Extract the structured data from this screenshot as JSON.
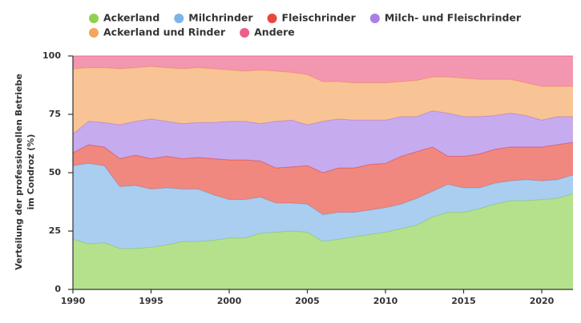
{
  "chart_data": {
    "type": "stacked_area",
    "y_label": [
      "Verteilung der professionellen Betriebe",
      "im Condroz (%)"
    ],
    "x": [
      1990,
      1991,
      1992,
      1993,
      1994,
      1995,
      1996,
      1997,
      1998,
      1999,
      2000,
      2001,
      2002,
      2003,
      2004,
      2005,
      2006,
      2007,
      2008,
      2009,
      2010,
      2011,
      2012,
      2013,
      2014,
      2015,
      2016,
      2017,
      2018,
      2019,
      2020,
      2021,
      2022
    ],
    "xlim": [
      1990,
      2022
    ],
    "xticks": [
      1990,
      1995,
      2000,
      2005,
      2010,
      2015,
      2020
    ],
    "ylim": [
      0,
      100
    ],
    "yticks": [
      0,
      25,
      50,
      75,
      100
    ],
    "grid": false,
    "series": [
      {
        "name": "Ackerland",
        "color": "#8fd14f",
        "values": [
          21.5,
          19.5,
          20,
          17.5,
          17.5,
          18,
          19,
          20.5,
          20.5,
          21,
          22,
          22,
          24,
          24.5,
          25,
          24.5,
          20.5,
          21.5,
          22.5,
          23.5,
          24.5,
          26,
          27.5,
          31,
          33,
          33,
          34.5,
          36.5,
          38,
          38,
          38.5,
          39,
          41
        ]
      },
      {
        "name": "Milchrinder",
        "color": "#7db4e8",
        "values": [
          31.5,
          34.5,
          33,
          26.5,
          27,
          25,
          24.5,
          22.5,
          22.5,
          19.5,
          16.5,
          16.5,
          15.5,
          12.5,
          12,
          12,
          11.5,
          11.5,
          10.5,
          10.5,
          10.5,
          10.5,
          11.5,
          11,
          12,
          10.5,
          9,
          9,
          8.5,
          9,
          8,
          8,
          8
        ]
      },
      {
        "name": "Fleischrinder",
        "color": "#e8483a",
        "values": [
          5.5,
          8,
          8,
          12,
          13,
          13,
          13.5,
          13,
          13.5,
          15.5,
          17,
          17,
          15.5,
          15,
          15.5,
          16.5,
          18,
          19,
          19,
          19.5,
          19,
          20.5,
          20,
          19,
          12,
          13.5,
          14.5,
          14.5,
          14.5,
          14,
          14.5,
          15,
          14
        ]
      },
      {
        "name": "Milch- und Fleischrinder",
        "color": "#a97ee6",
        "values": [
          8,
          10,
          10.5,
          14.5,
          14.5,
          17,
          15,
          15,
          15,
          15.5,
          16.5,
          16.5,
          16,
          20,
          20,
          17.5,
          22,
          21,
          20.5,
          19,
          18.5,
          17,
          15,
          15.5,
          18.5,
          17,
          16,
          14.5,
          14.5,
          13.5,
          11.5,
          12,
          11
        ]
      },
      {
        "name": "Ackerland und Rinder",
        "color": "#f5a55e",
        "values": [
          28,
          23,
          23.5,
          24,
          23,
          22.5,
          23,
          23.5,
          23.5,
          23,
          22,
          21.5,
          23,
          21.5,
          20.5,
          21.5,
          17,
          16,
          16,
          16,
          16,
          15,
          15.5,
          14.5,
          15.5,
          16.5,
          16,
          15.5,
          14.5,
          14,
          14.5,
          13,
          13
        ]
      },
      {
        "name": "Andere",
        "color": "#ec5f86",
        "values": [
          5.5,
          5,
          5,
          5.5,
          5,
          4.5,
          5,
          5.5,
          5,
          5.5,
          6,
          6.5,
          6,
          6.5,
          7,
          8,
          11,
          11,
          11.5,
          11.5,
          11.5,
          11,
          10.5,
          9,
          9,
          9.5,
          10,
          10,
          10,
          11.5,
          13,
          13,
          13
        ]
      }
    ]
  }
}
